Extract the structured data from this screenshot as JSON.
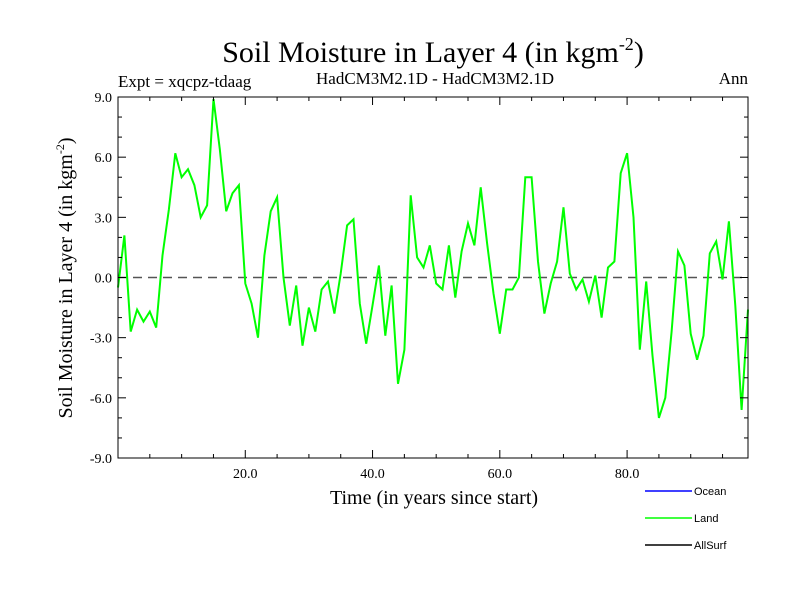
{
  "chart_data": {
    "type": "line",
    "title": "Soil Moisture in Layer 4 (in kgm",
    "title_sup": "-2",
    "title_close": ")",
    "subtitle_left": "Expt = xqcpz-tdaag",
    "subtitle_center": "HadCM3M2.1D - HadCM3M2.1D",
    "subtitle_right": "Ann",
    "xlabel": "Time (in years since start)",
    "ylabel": "Soil Moisture in Layer 4 (in kgm",
    "ylabel_sup": "-2",
    "ylabel_close": ")",
    "xlim": [
      0,
      99
    ],
    "ylim": [
      -9,
      9
    ],
    "xticks": [
      20,
      40,
      60,
      80
    ],
    "xtick_labels": [
      "20.0",
      "40.0",
      "60.0",
      "80.0"
    ],
    "yticks": [
      -9,
      -6,
      -3,
      0,
      3,
      6,
      9
    ],
    "ytick_labels": [
      "-9.0",
      "-6.0",
      "-3.0",
      "0.0",
      "3.0",
      "6.0",
      "9.0"
    ],
    "zero_line": 0,
    "series": [
      {
        "name": "Land",
        "color": "#00ff00",
        "x": [
          0,
          1,
          2,
          3,
          4,
          5,
          6,
          7,
          8,
          9,
          10,
          11,
          12,
          13,
          14,
          15,
          16,
          17,
          18,
          19,
          20,
          21,
          22,
          23,
          24,
          25,
          26,
          27,
          28,
          29,
          30,
          31,
          32,
          33,
          34,
          35,
          36,
          37,
          38,
          39,
          40,
          41,
          42,
          43,
          44,
          45,
          46,
          47,
          48,
          49,
          50,
          51,
          52,
          53,
          54,
          55,
          56,
          57,
          58,
          59,
          60,
          61,
          62,
          63,
          64,
          65,
          66,
          67,
          68,
          69,
          70,
          71,
          72,
          73,
          74,
          75,
          76,
          77,
          78,
          79,
          80,
          81,
          82,
          83,
          84,
          85,
          86,
          87,
          88,
          89,
          90,
          91,
          92,
          93,
          94,
          95,
          96,
          97,
          98,
          99
        ],
        "values": [
          -0.5,
          2.1,
          -2.7,
          -1.6,
          -2.2,
          -1.7,
          -2.5,
          1.1,
          3.4,
          6.2,
          5.0,
          5.4,
          4.6,
          3.0,
          3.6,
          8.9,
          6.4,
          3.3,
          4.2,
          4.6,
          -0.3,
          -1.3,
          -3.0,
          1.1,
          3.3,
          4.0,
          0.0,
          -2.4,
          -0.4,
          -3.4,
          -1.5,
          -2.7,
          -0.6,
          -0.2,
          -1.8,
          0.2,
          2.6,
          2.9,
          -1.3,
          -3.3,
          -1.4,
          0.6,
          -2.9,
          -0.4,
          -5.3,
          -3.6,
          4.1,
          1.0,
          0.5,
          1.6,
          -0.3,
          -0.6,
          1.6,
          -1.0,
          1.3,
          2.7,
          1.6,
          4.5,
          1.7,
          -0.8,
          -2.8,
          -0.6,
          -0.6,
          0.0,
          5.0,
          5.0,
          0.8,
          -1.8,
          -0.3,
          0.8,
          3.5,
          0.2,
          -0.6,
          -0.1,
          -1.2,
          0.1,
          -2.0,
          0.5,
          0.8,
          5.2,
          6.2,
          3.0,
          -3.6,
          -0.2,
          -3.9,
          -7.0,
          -6.0,
          -2.7,
          1.3,
          0.6,
          -2.8,
          -4.1,
          -2.9,
          1.2,
          1.8,
          -0.1,
          2.8,
          -1.4,
          -6.6,
          -1.6
        ]
      },
      {
        "name": "Ocean",
        "color": "#0000ff",
        "values": []
      },
      {
        "name": "AllSurf",
        "color": "#000000",
        "values": []
      }
    ],
    "legend": [
      {
        "label": "Ocean",
        "color": "#0000ff"
      },
      {
        "label": "Land",
        "color": "#00ff00"
      },
      {
        "label": "AllSurf",
        "color": "#000000"
      }
    ],
    "legend_position": "bottom-right"
  }
}
